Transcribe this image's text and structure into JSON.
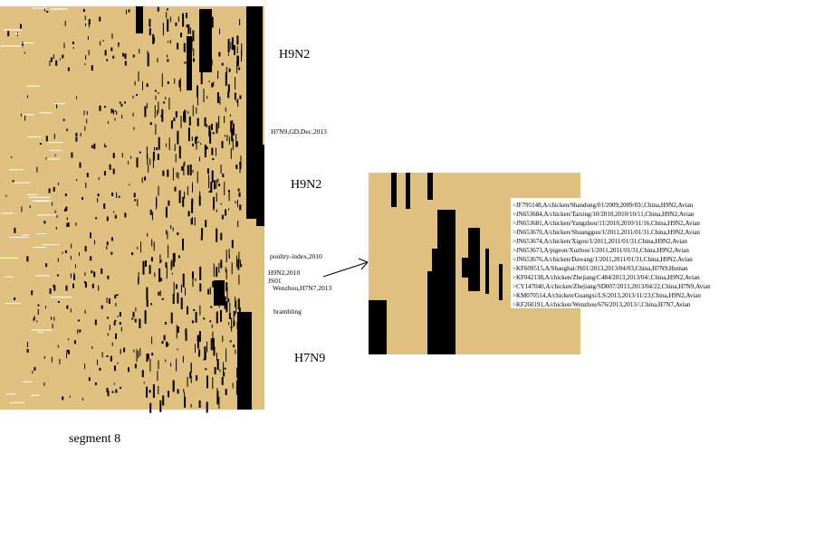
{
  "left_panel": {
    "labels": [
      "H9N2",
      "H7N9,GD,Dec.2013",
      "H9N2",
      "poultry-index,2010",
      "H9N2,2010",
      "JS01",
      "Wenzhou,H7N7,2013",
      "brambling",
      "H7N9"
    ]
  },
  "caption": "segment 8",
  "zoom_panel": {
    "sequences": [
      ">JF795148,A/chicken/Shandong/01/2009,2009/03/,China,H9N2,Avian",
      ">JN653684,A/chicken/Taixing/10/2010,2010/10/11,China,H9N2,Avian",
      ">JN653681,A/chicken/Yangzhou/11/2010,2010/11/16,China,H9N2,Avian",
      ">JN653670,A/chicken/Shuanggou/1/2011,2011/01/31,China,H9N2,Avian",
      ">JN653674,A/chicken/Xigou/1/2011,2011/01/31,China,H9N2,Avian",
      ">JN653673,A/pigeon/Xuzhou/1/2011,2011/01/31,China,H9N2,Avian",
      ">JN653676,A/chicken/Dawang/1/2011,2011/01/31,China,H9N2,Avian",
      ">KF609515,A/Shanghai/JS01/2013,2013/04/03,China,H7N9,Human",
      ">KF042138,A/chicken/Zhejiang/C484/2013,2013/04/,China,H9N2,Avian",
      ">CY147040,A/chicken/Zhejiang/SD007/2013,2013/04/22,China,H7N9,Avian",
      ">KM070514,A/chicken/Guangxi/LS/2013,2013/11/23,China,H9N2,Avian",
      ">KF260191,A/chicken/Wenzhou/676/2013,2013//,China,H7N7,Avian"
    ]
  }
}
